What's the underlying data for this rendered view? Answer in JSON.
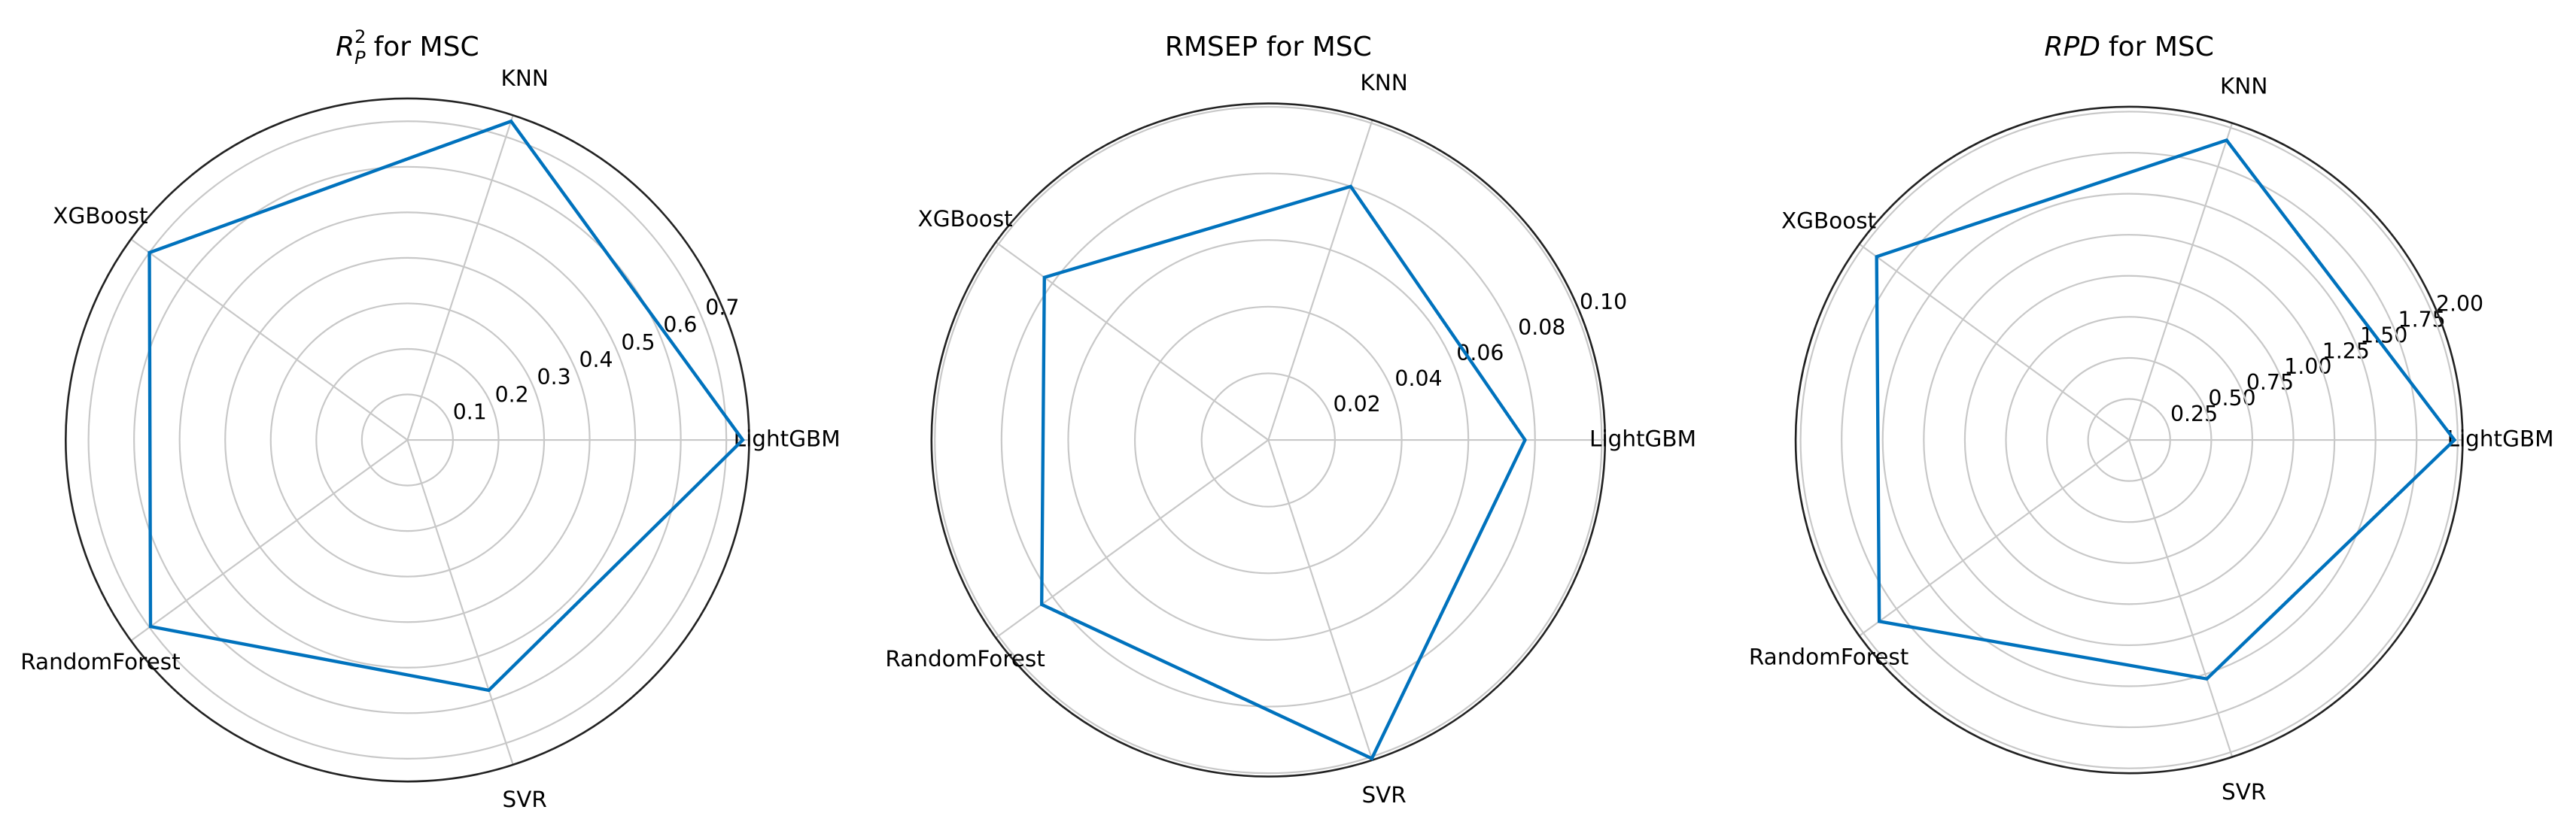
{
  "chart_data": [
    {
      "type": "radar",
      "title_symbol": "R",
      "title_sup": "2",
      "title_sub": "P",
      "title": "for MSC",
      "categories": [
        "LightGBM",
        "KNN",
        "XGBoost",
        "RandomForest",
        "SVR"
      ],
      "values": [
        0.736,
        0.736,
        0.7,
        0.697,
        0.578
      ],
      "color": "#0072bd",
      "ylim": [
        0,
        0.75
      ],
      "yticks": [
        0.1,
        0.2,
        0.3,
        0.4,
        0.5,
        0.6,
        0.7
      ],
      "grid": true
    },
    {
      "type": "radar",
      "title": "RMSEP for MSC",
      "categories": [
        "LightGBM",
        "KNN",
        "XGBoost",
        "RandomForest",
        "SVR"
      ],
      "values": [
        0.077,
        0.08,
        0.083,
        0.084,
        0.1005
      ],
      "color": "#0072bd",
      "ylim": [
        0,
        0.101
      ],
      "yticks": [
        0.02,
        0.04,
        0.06,
        0.08,
        {
          "value": 0.1,
          "label": "0.10"
        }
      ],
      "grid": true
    },
    {
      "type": "radar",
      "title_symbol": "RPD",
      "title": "for MSC",
      "categories": [
        "LightGBM",
        "KNN",
        "XGBoost",
        "RandomForest",
        "SVR"
      ],
      "values": [
        1.98,
        1.92,
        1.9,
        1.88,
        1.53
      ],
      "color": "#0072bd",
      "ylim": [
        0,
        2.03
      ],
      "yticks": [
        0.25,
        {
          "value": 0.5,
          "label": "0.50"
        },
        0.75,
        {
          "value": 1,
          "label": "1.00"
        },
        1.25,
        {
          "value": 1.5,
          "label": "1.50"
        },
        1.75,
        {
          "value": 2,
          "label": "2.00"
        }
      ],
      "grid": true
    }
  ]
}
